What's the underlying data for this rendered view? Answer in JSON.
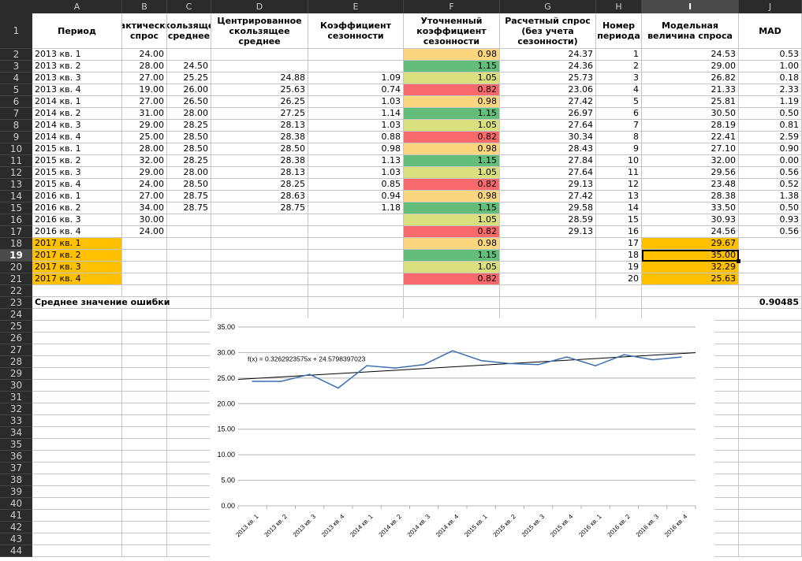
{
  "columns": [
    "A",
    "B",
    "C",
    "D",
    "E",
    "F",
    "G",
    "H",
    "I",
    "J"
  ],
  "selected_column": "I",
  "selected_row": 19,
  "headers": {
    "A": "Период",
    "B": "Фактический спрос",
    "C": "Скользящее среднее",
    "D": "Центрированное скользящее среднее",
    "E": "Коэффициент сезонности",
    "F": "Уточненный коэффициент сезонности",
    "G": "Расчетный спрос (без учета сезонности)",
    "H": "Номер периода",
    "I": "Модельная величина спроса",
    "J": "MAD"
  },
  "rows": [
    {
      "A": "2013 кв. 1",
      "B": "24.00",
      "C": "",
      "D": "",
      "E": "",
      "F": "0.98",
      "G": "24.37",
      "H": "1",
      "I": "24.53",
      "J": "0.53"
    },
    {
      "A": "2013 кв. 2",
      "B": "28.00",
      "C": "24.50",
      "D": "",
      "E": "",
      "F": "1.15",
      "G": "24.36",
      "H": "2",
      "I": "29.00",
      "J": "1.00"
    },
    {
      "A": "2013 кв. 3",
      "B": "27.00",
      "C": "25.25",
      "D": "24.88",
      "E": "1.09",
      "F": "1.05",
      "G": "25.73",
      "H": "3",
      "I": "26.82",
      "J": "0.18"
    },
    {
      "A": "2013 кв. 4",
      "B": "19.00",
      "C": "26.00",
      "D": "25.63",
      "E": "0.74",
      "F": "0.82",
      "G": "23.06",
      "H": "4",
      "I": "21.33",
      "J": "2.33"
    },
    {
      "A": "2014 кв. 1",
      "B": "27.00",
      "C": "26.50",
      "D": "26.25",
      "E": "1.03",
      "F": "0.98",
      "G": "27.42",
      "H": "5",
      "I": "25.81",
      "J": "1.19"
    },
    {
      "A": "2014 кв. 2",
      "B": "31.00",
      "C": "28.00",
      "D": "27.25",
      "E": "1.14",
      "F": "1.15",
      "G": "26.97",
      "H": "6",
      "I": "30.50",
      "J": "0.50"
    },
    {
      "A": "2014 кв. 3",
      "B": "29.00",
      "C": "28.25",
      "D": "28.13",
      "E": "1.03",
      "F": "1.05",
      "G": "27.64",
      "H": "7",
      "I": "28.19",
      "J": "0.81"
    },
    {
      "A": "2014 кв. 4",
      "B": "25.00",
      "C": "28.50",
      "D": "28.38",
      "E": "0.88",
      "F": "0.82",
      "G": "30.34",
      "H": "8",
      "I": "22.41",
      "J": "2.59"
    },
    {
      "A": "2015 кв. 1",
      "B": "28.00",
      "C": "28.50",
      "D": "28.50",
      "E": "0.98",
      "F": "0.98",
      "G": "28.43",
      "H": "9",
      "I": "27.10",
      "J": "0.90"
    },
    {
      "A": "2015 кв. 2",
      "B": "32.00",
      "C": "28.25",
      "D": "28.38",
      "E": "1.13",
      "F": "1.15",
      "G": "27.84",
      "H": "10",
      "I": "32.00",
      "J": "0.00"
    },
    {
      "A": "2015 кв. 3",
      "B": "29.00",
      "C": "28.00",
      "D": "28.13",
      "E": "1.03",
      "F": "1.05",
      "G": "27.64",
      "H": "11",
      "I": "29.56",
      "J": "0.56"
    },
    {
      "A": "2015 кв. 4",
      "B": "24.00",
      "C": "28.50",
      "D": "28.25",
      "E": "0.85",
      "F": "0.82",
      "G": "29.13",
      "H": "12",
      "I": "23.48",
      "J": "0.52"
    },
    {
      "A": "2016 кв. 1",
      "B": "27.00",
      "C": "28.75",
      "D": "28.63",
      "E": "0.94",
      "F": "0.98",
      "G": "27.42",
      "H": "13",
      "I": "28.38",
      "J": "1.38"
    },
    {
      "A": "2016 кв. 2",
      "B": "34.00",
      "C": "28.75",
      "D": "28.75",
      "E": "1.18",
      "F": "1.15",
      "G": "29.58",
      "H": "14",
      "I": "33.50",
      "J": "0.50"
    },
    {
      "A": "2016 кв. 3",
      "B": "30.00",
      "C": "",
      "D": "",
      "E": "",
      "F": "1.05",
      "G": "28.59",
      "H": "15",
      "I": "30.93",
      "J": "0.93"
    },
    {
      "A": "2016 кв. 4",
      "B": "24.00",
      "C": "",
      "D": "",
      "E": "",
      "F": "0.82",
      "G": "29.13",
      "H": "16",
      "I": "24.56",
      "J": "0.56"
    },
    {
      "A": "2017 кв. 1",
      "B": "",
      "C": "",
      "D": "",
      "E": "",
      "F": "0.98",
      "G": "",
      "H": "17",
      "I": "29.67",
      "J": ""
    },
    {
      "A": "2017 кв. 2",
      "B": "",
      "C": "",
      "D": "",
      "E": "",
      "F": "1.15",
      "G": "",
      "H": "18",
      "I": "35.00",
      "J": ""
    },
    {
      "A": "2017 кв. 3",
      "B": "",
      "C": "",
      "D": "",
      "E": "",
      "F": "1.05",
      "G": "",
      "H": "19",
      "I": "32.29",
      "J": ""
    },
    {
      "A": "2017 кв. 4",
      "B": "",
      "C": "",
      "D": "",
      "E": "",
      "F": "0.82",
      "G": "",
      "H": "20",
      "I": "25.63",
      "J": ""
    }
  ],
  "summary": {
    "label": "Среднее значение ошибки",
    "value": "0.90485"
  },
  "colors": {
    "f_098": "#fcd57f",
    "f_115": "#63be7b",
    "f_105": "#d9e07d",
    "f_082": "#f8696b",
    "forecast": "#ffc000",
    "line": "#3c6fb0",
    "header_bg": "#2b2b2b"
  },
  "chart_data": {
    "type": "line",
    "categories": [
      "2013 кв. 1",
      "2013 кв. 2",
      "2013 кв. 3",
      "2013 кв. 4",
      "2014 кв. 1",
      "2014 кв. 2",
      "2014 кв. 3",
      "2014 кв. 4",
      "2015 кв. 1",
      "2015 кв. 2",
      "2015 кв. 3",
      "2015 кв. 4",
      "2016 кв. 1",
      "2016 кв. 2",
      "2016 кв. 3",
      "2016 кв. 4"
    ],
    "series": [
      {
        "name": "",
        "values": [
          24.37,
          24.36,
          25.73,
          23.06,
          27.42,
          26.97,
          27.64,
          30.34,
          28.43,
          27.84,
          27.64,
          29.13,
          27.42,
          29.58,
          28.59,
          29.13
        ]
      }
    ],
    "trendline": {
      "slope": 0.3262923575,
      "intercept": 24.5798397023,
      "label": "f(x) = 0.3262923575x + 24.5798397023"
    },
    "ylim": [
      0,
      35
    ],
    "yticks": [
      "0.00",
      "5.00",
      "10.00",
      "15.00",
      "20.00",
      "25.00",
      "30.00",
      "35.00"
    ],
    "grid": true
  }
}
